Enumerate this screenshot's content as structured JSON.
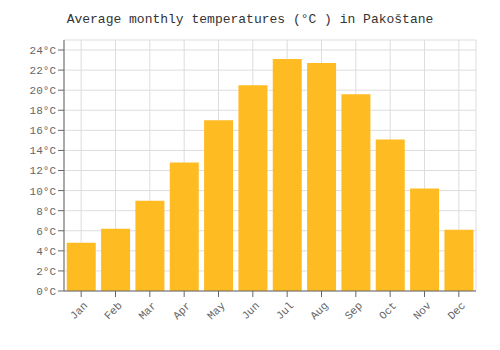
{
  "chart_data": {
    "type": "bar",
    "title": "Average monthly temperatures (°C ) in Pakoštane",
    "categories": [
      "Jan",
      "Feb",
      "Mar",
      "Apr",
      "May",
      "Jun",
      "Jul",
      "Aug",
      "Sep",
      "Oct",
      "Nov",
      "Dec"
    ],
    "values": [
      4.8,
      6.2,
      9.0,
      12.8,
      17.0,
      20.5,
      23.1,
      22.7,
      19.6,
      15.1,
      10.2,
      6.1
    ],
    "color": "#FFBB22",
    "ylim": [
      0,
      25
    ],
    "yticks": [
      {
        "value": 0,
        "label": "0°C"
      },
      {
        "value": 2,
        "label": "2°C"
      },
      {
        "value": 4,
        "label": "4°C"
      },
      {
        "value": 6,
        "label": "6°C"
      },
      {
        "value": 8,
        "label": "8°C"
      },
      {
        "value": 10,
        "label": "10°C"
      },
      {
        "value": 12,
        "label": "12°C"
      },
      {
        "value": 14,
        "label": "14°C"
      },
      {
        "value": 16,
        "label": "16°C"
      },
      {
        "value": 18,
        "label": "18°C"
      },
      {
        "value": 20,
        "label": "20°C"
      },
      {
        "value": 22,
        "label": "22°C"
      },
      {
        "value": 24,
        "label": "24°C"
      }
    ],
    "grid": true
  }
}
